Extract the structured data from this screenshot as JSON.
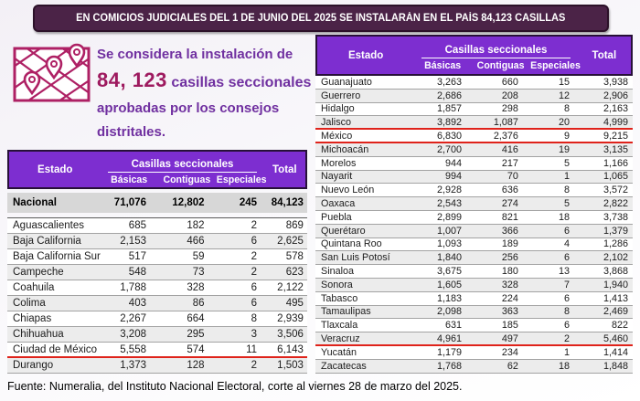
{
  "banner": {
    "text": "EN COMICIOS JUDICIALES DEL 1 DE JUNIO DEL 2025 SE INSTALARÁN EN EL PAÍS 84,123 CASILLAS"
  },
  "intro": {
    "icon": "map-with-location-pins-icon",
    "line1": "Se considera la instalación de",
    "number": "84, 123",
    "number_label": "casillas seccionales",
    "line3": "aprobadas por los consejos",
    "line4": "distritales."
  },
  "table_headers": {
    "estado": "Estado",
    "group": "Casillas seccionales",
    "basicas": "Básicas",
    "contiguas": "Contiguas",
    "especiales": "Especiales",
    "total": "Total"
  },
  "left_table": {
    "national_row": {
      "estado": "Nacional",
      "basicas": "71,076",
      "contiguas": "12,802",
      "especiales": "245",
      "total": "84,123"
    },
    "rows": [
      {
        "estado": "Aguascalientes",
        "basicas": "685",
        "contiguas": "182",
        "especiales": "2",
        "total": "869"
      },
      {
        "estado": "Baja California",
        "basicas": "2,153",
        "contiguas": "466",
        "especiales": "6",
        "total": "2,625"
      },
      {
        "estado": "Baja California Sur",
        "basicas": "517",
        "contiguas": "59",
        "especiales": "2",
        "total": "578"
      },
      {
        "estado": "Campeche",
        "basicas": "548",
        "contiguas": "73",
        "especiales": "2",
        "total": "623"
      },
      {
        "estado": "Coahuila",
        "basicas": "1,788",
        "contiguas": "328",
        "especiales": "6",
        "total": "2,122"
      },
      {
        "estado": "Colima",
        "basicas": "403",
        "contiguas": "86",
        "especiales": "6",
        "total": "495"
      },
      {
        "estado": "Chiapas",
        "basicas": "2,267",
        "contiguas": "664",
        "especiales": "8",
        "total": "2,939"
      },
      {
        "estado": "Chihuahua",
        "basicas": "3,208",
        "contiguas": "295",
        "especiales": "3",
        "total": "3,506"
      },
      {
        "estado": "Ciudad de México",
        "basicas": "5,558",
        "contiguas": "574",
        "especiales": "11",
        "total": "6,143",
        "redline": true
      },
      {
        "estado": "Durango",
        "basicas": "1,373",
        "contiguas": "128",
        "especiales": "2",
        "total": "1,503"
      }
    ]
  },
  "right_table": {
    "rows": [
      {
        "estado": "Guanajuato",
        "basicas": "3,263",
        "contiguas": "660",
        "especiales": "15",
        "total": "3,938"
      },
      {
        "estado": "Guerrero",
        "basicas": "2,686",
        "contiguas": "208",
        "especiales": "12",
        "total": "2,906"
      },
      {
        "estado": "Hidalgo",
        "basicas": "1,857",
        "contiguas": "298",
        "especiales": "8",
        "total": "2,163"
      },
      {
        "estado": "Jalisco",
        "basicas": "3,892",
        "contiguas": "1,087",
        "especiales": "20",
        "total": "4,999",
        "redline": true
      },
      {
        "estado": "México",
        "basicas": "6,830",
        "contiguas": "2,376",
        "especiales": "9",
        "total": "9,215",
        "redline": true
      },
      {
        "estado": "Michoacán",
        "basicas": "2,700",
        "contiguas": "416",
        "especiales": "19",
        "total": "3,135"
      },
      {
        "estado": "Morelos",
        "basicas": "944",
        "contiguas": "217",
        "especiales": "5",
        "total": "1,166"
      },
      {
        "estado": "Nayarit",
        "basicas": "994",
        "contiguas": "70",
        "especiales": "1",
        "total": "1,065"
      },
      {
        "estado": "Nuevo León",
        "basicas": "2,928",
        "contiguas": "636",
        "especiales": "8",
        "total": "3,572"
      },
      {
        "estado": "Oaxaca",
        "basicas": "2,543",
        "contiguas": "274",
        "especiales": "5",
        "total": "2,822"
      },
      {
        "estado": "Puebla",
        "basicas": "2,899",
        "contiguas": "821",
        "especiales": "18",
        "total": "3,738"
      },
      {
        "estado": "Querétaro",
        "basicas": "1,007",
        "contiguas": "366",
        "especiales": "6",
        "total": "1,379"
      },
      {
        "estado": "Quintana Roo",
        "basicas": "1,093",
        "contiguas": "189",
        "especiales": "4",
        "total": "1,286"
      },
      {
        "estado": "San Luis Potosí",
        "basicas": "1,840",
        "contiguas": "256",
        "especiales": "6",
        "total": "2,102"
      },
      {
        "estado": "Sinaloa",
        "basicas": "3,675",
        "contiguas": "180",
        "especiales": "13",
        "total": "3,868"
      },
      {
        "estado": "Sonora",
        "basicas": "1,605",
        "contiguas": "328",
        "especiales": "7",
        "total": "1,940"
      },
      {
        "estado": "Tabasco",
        "basicas": "1,183",
        "contiguas": "224",
        "especiales": "6",
        "total": "1,413"
      },
      {
        "estado": "Tamaulipas",
        "basicas": "2,098",
        "contiguas": "363",
        "especiales": "8",
        "total": "2,469"
      },
      {
        "estado": "Tlaxcala",
        "basicas": "631",
        "contiguas": "185",
        "especiales": "6",
        "total": "822"
      },
      {
        "estado": "Veracruz",
        "basicas": "4,961",
        "contiguas": "497",
        "especiales": "2",
        "total": "5,460",
        "redline": true
      },
      {
        "estado": "Yucatán",
        "basicas": "1,179",
        "contiguas": "234",
        "especiales": "1",
        "total": "1,414"
      },
      {
        "estado": "Zacatecas",
        "basicas": "1,768",
        "contiguas": "62",
        "especiales": "18",
        "total": "1,848"
      }
    ]
  },
  "footer": {
    "text": "Fuente: Numeralia, del Instituto Nacional Electoral, corte al viernes 28 de marzo del 2025."
  },
  "colors": {
    "banner_bg": "#4b2347",
    "table_header_purple": "#7d2ed0",
    "highlight_red": "#df231b",
    "number_magenta": "#9e1a5f",
    "text_purple": "#7030a0",
    "icon_crimson": "#ae2064",
    "national_row_bg": "#d7d7d7",
    "stripe_gray": "#ececec"
  }
}
